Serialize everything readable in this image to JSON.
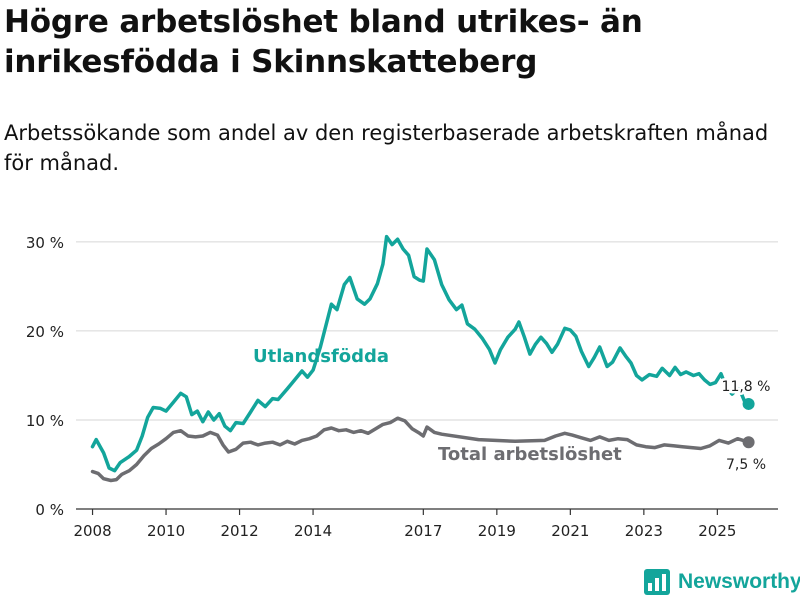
{
  "title": "Högre arbetslöshet bland utrikes- än inrikesfödda i Skinnskatteberg",
  "subtitle": "Arbetssökande som andel av den registerbaserade arbetskraften månad för månad.",
  "logo_text": "Newsworthy",
  "colors": {
    "utlandsfodda": "#13a59b",
    "total": "#6d6d71",
    "grid": "#d6d6d6"
  },
  "chart_data": {
    "type": "line",
    "x_unit": "year",
    "xlim": [
      2007.55,
      2026.65
    ],
    "ylim": [
      0,
      31
    ],
    "y_ticks": [
      0,
      10,
      20,
      30
    ],
    "y_tick_labels": [
      "0 %",
      "10 %",
      "20 %",
      "30 %"
    ],
    "x_ticks": [
      2008,
      2010,
      2012,
      2014,
      2017,
      2019,
      2021,
      2023,
      2025
    ],
    "x_tick_labels": [
      "2008",
      "2010",
      "2012",
      "2014",
      "2017",
      "2019",
      "2021",
      "2023",
      "2025"
    ],
    "series": [
      {
        "name": "Utlandsfödda",
        "label": "Utlandsfödda",
        "end_label": "11,8 %",
        "end_value": 11.8,
        "points": [
          [
            2008.0,
            7.0
          ],
          [
            2008.1,
            7.8
          ],
          [
            2008.3,
            6.3
          ],
          [
            2008.45,
            4.6
          ],
          [
            2008.6,
            4.3
          ],
          [
            2008.75,
            5.2
          ],
          [
            2009.0,
            5.9
          ],
          [
            2009.2,
            6.6
          ],
          [
            2009.35,
            8.2
          ],
          [
            2009.5,
            10.3
          ],
          [
            2009.65,
            11.4
          ],
          [
            2009.85,
            11.3
          ],
          [
            2010.0,
            11.0
          ],
          [
            2010.2,
            12.0
          ],
          [
            2010.4,
            13.0
          ],
          [
            2010.55,
            12.6
          ],
          [
            2010.7,
            10.6
          ],
          [
            2010.85,
            11.0
          ],
          [
            2011.0,
            9.8
          ],
          [
            2011.15,
            10.9
          ],
          [
            2011.3,
            10.0
          ],
          [
            2011.45,
            10.7
          ],
          [
            2011.6,
            9.3
          ],
          [
            2011.75,
            8.8
          ],
          [
            2011.9,
            9.7
          ],
          [
            2012.1,
            9.6
          ],
          [
            2012.3,
            10.9
          ],
          [
            2012.5,
            12.2
          ],
          [
            2012.7,
            11.5
          ],
          [
            2012.9,
            12.4
          ],
          [
            2013.05,
            12.3
          ],
          [
            2013.3,
            13.5
          ],
          [
            2013.5,
            14.5
          ],
          [
            2013.7,
            15.5
          ],
          [
            2013.85,
            14.8
          ],
          [
            2014.0,
            15.6
          ],
          [
            2014.2,
            18.2
          ],
          [
            2014.35,
            20.6
          ],
          [
            2014.5,
            23.0
          ],
          [
            2014.65,
            22.4
          ],
          [
            2014.85,
            25.2
          ],
          [
            2015.0,
            26.0
          ],
          [
            2015.2,
            23.6
          ],
          [
            2015.4,
            23.0
          ],
          [
            2015.55,
            23.6
          ],
          [
            2015.75,
            25.3
          ],
          [
            2015.9,
            27.5
          ],
          [
            2016.0,
            30.6
          ],
          [
            2016.15,
            29.7
          ],
          [
            2016.3,
            30.3
          ],
          [
            2016.45,
            29.2
          ],
          [
            2016.6,
            28.5
          ],
          [
            2016.75,
            26.1
          ],
          [
            2016.9,
            25.7
          ],
          [
            2017.0,
            25.6
          ],
          [
            2017.1,
            29.2
          ],
          [
            2017.3,
            28.0
          ],
          [
            2017.5,
            25.2
          ],
          [
            2017.7,
            23.5
          ],
          [
            2017.9,
            22.4
          ],
          [
            2018.05,
            22.9
          ],
          [
            2018.2,
            20.8
          ],
          [
            2018.4,
            20.2
          ],
          [
            2018.6,
            19.2
          ],
          [
            2018.8,
            17.9
          ],
          [
            2018.95,
            16.4
          ],
          [
            2019.1,
            17.9
          ],
          [
            2019.3,
            19.3
          ],
          [
            2019.5,
            20.2
          ],
          [
            2019.6,
            21.0
          ],
          [
            2019.75,
            19.3
          ],
          [
            2019.9,
            17.4
          ],
          [
            2020.05,
            18.5
          ],
          [
            2020.2,
            19.3
          ],
          [
            2020.35,
            18.6
          ],
          [
            2020.5,
            17.6
          ],
          [
            2020.65,
            18.5
          ],
          [
            2020.85,
            20.3
          ],
          [
            2021.0,
            20.1
          ],
          [
            2021.15,
            19.4
          ],
          [
            2021.3,
            17.7
          ],
          [
            2021.5,
            16.0
          ],
          [
            2021.65,
            17.0
          ],
          [
            2021.8,
            18.2
          ],
          [
            2022.0,
            16.0
          ],
          [
            2022.15,
            16.5
          ],
          [
            2022.35,
            18.1
          ],
          [
            2022.5,
            17.2
          ],
          [
            2022.65,
            16.4
          ],
          [
            2022.8,
            15.0
          ],
          [
            2022.95,
            14.5
          ],
          [
            2023.15,
            15.1
          ],
          [
            2023.35,
            14.9
          ],
          [
            2023.5,
            15.8
          ],
          [
            2023.7,
            15.0
          ],
          [
            2023.85,
            15.9
          ],
          [
            2024.0,
            15.1
          ],
          [
            2024.15,
            15.4
          ],
          [
            2024.35,
            15.0
          ],
          [
            2024.5,
            15.2
          ],
          [
            2024.65,
            14.5
          ],
          [
            2024.8,
            14.0
          ],
          [
            2024.95,
            14.2
          ],
          [
            2025.1,
            15.2
          ],
          [
            2025.25,
            13.6
          ],
          [
            2025.4,
            12.9
          ],
          [
            2025.5,
            13.3
          ],
          [
            2025.6,
            13.5
          ],
          [
            2025.75,
            12.0
          ],
          [
            2025.85,
            11.8
          ]
        ]
      },
      {
        "name": "Total arbetslöshet",
        "label": "Total arbetslöshet",
        "end_label": "7,5 %",
        "end_value": 7.5,
        "points": [
          [
            2008.0,
            4.2
          ],
          [
            2008.15,
            4.0
          ],
          [
            2008.3,
            3.4
          ],
          [
            2008.5,
            3.2
          ],
          [
            2008.65,
            3.3
          ],
          [
            2008.8,
            3.9
          ],
          [
            2009.0,
            4.3
          ],
          [
            2009.2,
            5.0
          ],
          [
            2009.4,
            6.0
          ],
          [
            2009.6,
            6.8
          ],
          [
            2009.8,
            7.3
          ],
          [
            2010.0,
            7.9
          ],
          [
            2010.2,
            8.6
          ],
          [
            2010.4,
            8.8
          ],
          [
            2010.6,
            8.2
          ],
          [
            2010.8,
            8.1
          ],
          [
            2011.0,
            8.2
          ],
          [
            2011.2,
            8.6
          ],
          [
            2011.4,
            8.3
          ],
          [
            2011.55,
            7.2
          ],
          [
            2011.7,
            6.4
          ],
          [
            2011.9,
            6.7
          ],
          [
            2012.1,
            7.4
          ],
          [
            2012.3,
            7.5
          ],
          [
            2012.5,
            7.2
          ],
          [
            2012.7,
            7.4
          ],
          [
            2012.9,
            7.5
          ],
          [
            2013.1,
            7.2
          ],
          [
            2013.3,
            7.6
          ],
          [
            2013.5,
            7.3
          ],
          [
            2013.7,
            7.7
          ],
          [
            2013.9,
            7.9
          ],
          [
            2014.1,
            8.2
          ],
          [
            2014.3,
            8.9
          ],
          [
            2014.5,
            9.1
          ],
          [
            2014.7,
            8.8
          ],
          [
            2014.9,
            8.9
          ],
          [
            2015.1,
            8.6
          ],
          [
            2015.3,
            8.8
          ],
          [
            2015.5,
            8.5
          ],
          [
            2015.7,
            9.0
          ],
          [
            2015.9,
            9.5
          ],
          [
            2016.1,
            9.7
          ],
          [
            2016.3,
            10.2
          ],
          [
            2016.5,
            9.9
          ],
          [
            2016.7,
            9.0
          ],
          [
            2016.9,
            8.5
          ],
          [
            2017.0,
            8.2
          ],
          [
            2017.1,
            9.2
          ],
          [
            2017.3,
            8.6
          ],
          [
            2017.5,
            8.4
          ],
          [
            2018.5,
            7.8
          ],
          [
            2019.5,
            7.6
          ],
          [
            2020.3,
            7.7
          ],
          [
            2020.6,
            8.2
          ],
          [
            2020.85,
            8.5
          ],
          [
            2021.05,
            8.3
          ],
          [
            2021.3,
            8.0
          ],
          [
            2021.55,
            7.7
          ],
          [
            2021.8,
            8.1
          ],
          [
            2022.05,
            7.7
          ],
          [
            2022.3,
            7.9
          ],
          [
            2022.55,
            7.8
          ],
          [
            2022.8,
            7.2
          ],
          [
            2023.05,
            7.0
          ],
          [
            2023.3,
            6.9
          ],
          [
            2023.55,
            7.2
          ],
          [
            2023.8,
            7.1
          ],
          [
            2024.05,
            7.0
          ],
          [
            2024.3,
            6.9
          ],
          [
            2024.55,
            6.8
          ],
          [
            2024.8,
            7.1
          ],
          [
            2025.05,
            7.7
          ],
          [
            2025.3,
            7.4
          ],
          [
            2025.55,
            7.9
          ],
          [
            2025.85,
            7.5
          ]
        ]
      }
    ]
  }
}
